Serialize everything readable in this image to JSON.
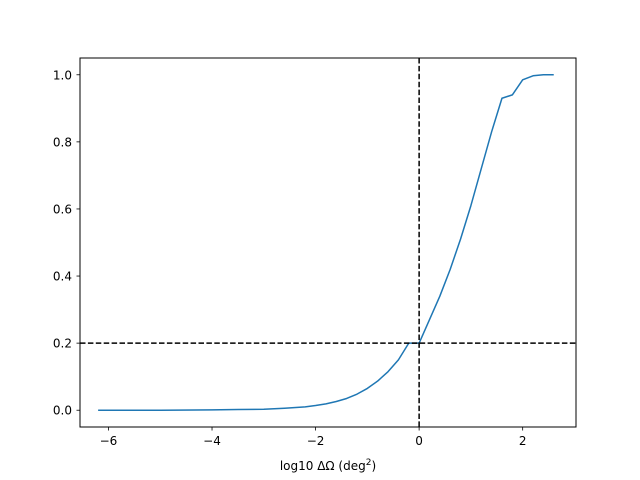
{
  "chart_data": {
    "type": "line",
    "title": "",
    "xlabel": "log10 ΔΩ (deg",
    "xlabel_sup": "2",
    "xlabel_tail": ")",
    "ylabel": "",
    "xlim": [
      -6.55,
      3.03
    ],
    "ylim": [
      -0.05,
      1.05
    ],
    "xticks": [
      -6,
      -4,
      -2,
      0,
      2
    ],
    "xtick_labels": [
      "−6",
      "−4",
      "−2",
      "0",
      "2"
    ],
    "yticks": [
      0.0,
      0.2,
      0.4,
      0.6,
      0.8,
      1.0
    ],
    "ytick_labels": [
      "0.0",
      "0.2",
      "0.4",
      "0.6",
      "0.8",
      "1.0"
    ],
    "grid": false,
    "series": [
      {
        "color": "#1f77b4",
        "x": [
          -6.2,
          -5.0,
          -4.0,
          -3.5,
          -3.0,
          -2.6,
          -2.2,
          -2.0,
          -1.8,
          -1.6,
          -1.4,
          -1.2,
          -1.0,
          -0.8,
          -0.6,
          -0.4,
          -0.2,
          0.0,
          0.2,
          0.4,
          0.6,
          0.8,
          1.0,
          1.2,
          1.4,
          1.6,
          1.8,
          2.0,
          2.2,
          2.4,
          2.6
        ],
        "y": [
          0.0,
          0.0,
          0.001,
          0.002,
          0.003,
          0.006,
          0.01,
          0.014,
          0.019,
          0.026,
          0.035,
          0.048,
          0.065,
          0.087,
          0.115,
          0.15,
          0.2,
          0.2,
          0.27,
          0.34,
          0.42,
          0.51,
          0.61,
          0.72,
          0.83,
          0.93,
          0.94,
          0.985,
          0.997,
          1.0,
          1.0
        ]
      }
    ],
    "reference_lines": [
      {
        "orientation": "vertical",
        "value": 0,
        "color": "#000000",
        "style": "dashed"
      },
      {
        "orientation": "horizontal",
        "value": 0.2,
        "color": "#000000",
        "style": "dashed"
      }
    ]
  }
}
